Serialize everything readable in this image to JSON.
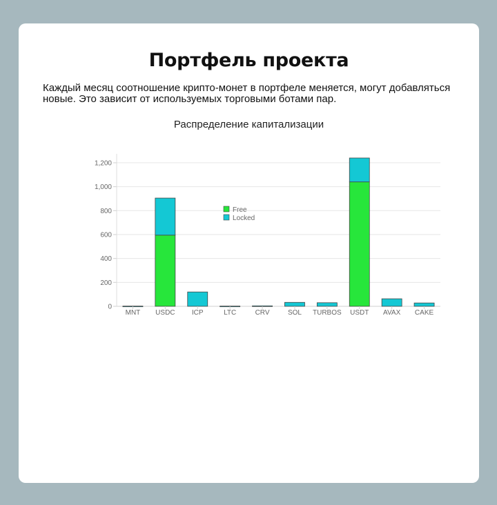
{
  "page": {
    "title": "Портфель проекта",
    "description": "Каждый месяц соотношение крипто-монет в портфеле меняется, могут добавляться новые. Это зависит от используемых торговыми ботами пар."
  },
  "chart_data": {
    "type": "bar",
    "stacked": true,
    "title": "Распределение капитализации",
    "xlabel": "",
    "ylabel": "",
    "categories": [
      "MNT",
      "USDC",
      "ICP",
      "LTC",
      "CRV",
      "SOL",
      "TURBOS",
      "USDT",
      "AVAX",
      "CAKE"
    ],
    "series": [
      {
        "name": "Free",
        "color": "#27e63b",
        "values": [
          0,
          595,
          0,
          0,
          0,
          0,
          0,
          1040,
          0,
          0
        ]
      },
      {
        "name": "Locked",
        "color": "#14c8d4",
        "values": [
          2,
          310,
          120,
          2,
          4,
          33,
          30,
          200,
          63,
          28
        ]
      }
    ],
    "ylim": [
      0,
      1240
    ],
    "yticks": [
      0,
      200,
      400,
      600,
      800,
      1000,
      1200
    ],
    "ytick_labels": [
      "0",
      "200",
      "400",
      "600",
      "800",
      "1,000",
      "1,200"
    ],
    "grid": true,
    "legend_position": "top-center"
  }
}
